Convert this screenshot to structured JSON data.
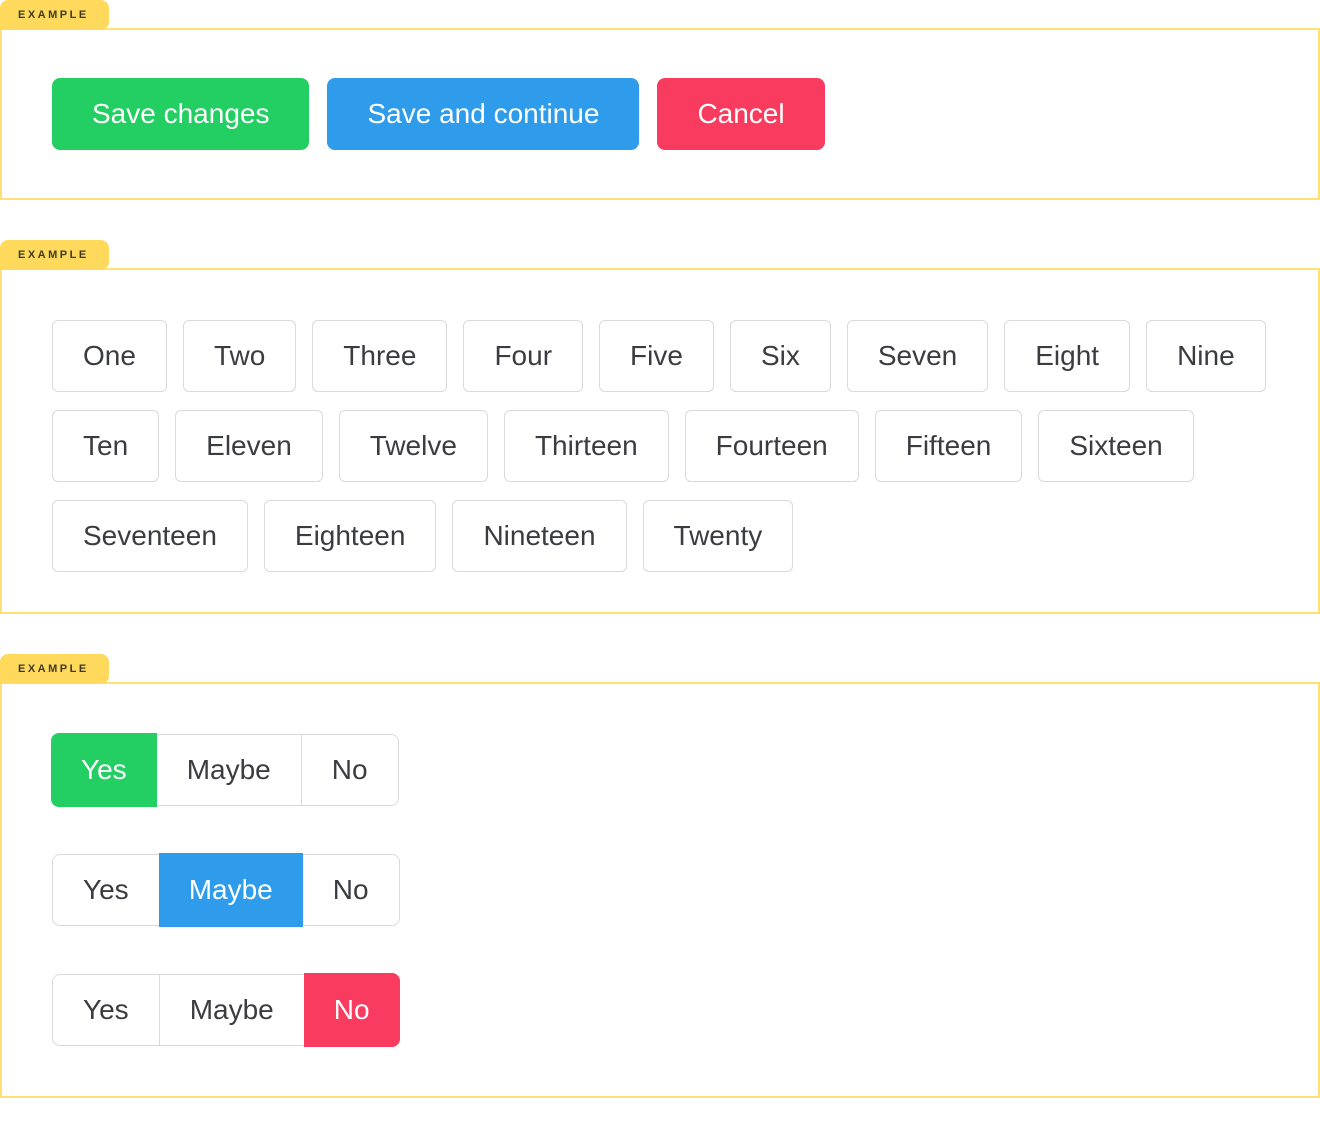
{
  "example_label": "EXAMPLE",
  "colors": {
    "tab_bg": "#FFD95C",
    "tab_text": "#3F3A23",
    "box_border": "#FFE076",
    "green": "#23CE62",
    "blue": "#2E9CEB",
    "red": "#F93B5F",
    "button_border": "#D9D9DE",
    "button_text": "#3B3C41",
    "button_text_active": "#FFFFFF"
  },
  "sections": {
    "actions": {
      "buttons": [
        {
          "label": "Save changes",
          "variant": "green"
        },
        {
          "label": "Save and continue",
          "variant": "blue"
        },
        {
          "label": "Cancel",
          "variant": "red"
        }
      ]
    },
    "numbers": {
      "buttons": [
        "One",
        "Two",
        "Three",
        "Four",
        "Five",
        "Six",
        "Seven",
        "Eight",
        "Nine",
        "Ten",
        "Eleven",
        "Twelve",
        "Thirteen",
        "Fourteen",
        "Fifteen",
        "Sixteen",
        "Seventeen",
        "Eighteen",
        "Nineteen",
        "Twenty"
      ]
    },
    "segmented": {
      "groups": [
        {
          "options": [
            "Yes",
            "Maybe",
            "No"
          ],
          "active_index": 0,
          "variant": "green"
        },
        {
          "options": [
            "Yes",
            "Maybe",
            "No"
          ],
          "active_index": 1,
          "variant": "blue"
        },
        {
          "options": [
            "Yes",
            "Maybe",
            "No"
          ],
          "active_index": 2,
          "variant": "red"
        }
      ]
    }
  }
}
